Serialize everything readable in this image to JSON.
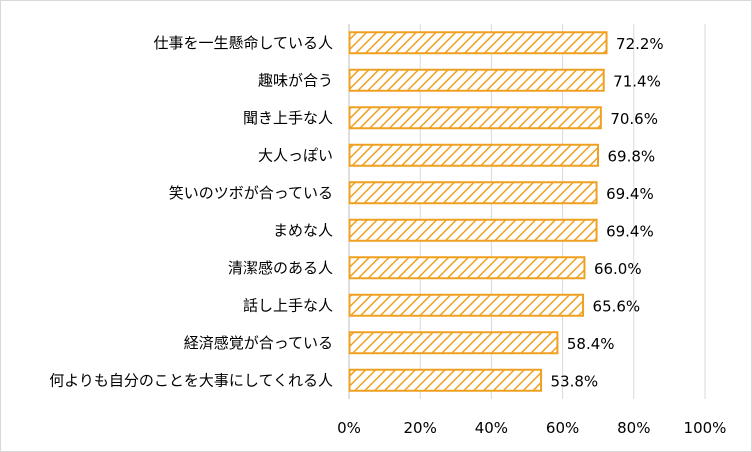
{
  "chart_data": {
    "type": "bar",
    "orientation": "horizontal",
    "categories": [
      "仕事を一生懸命している人",
      "趣味が合う",
      "聞き上手な人",
      "大人っぽい",
      "笑いのツボが合っている",
      "まめな人",
      "清潔感のある人",
      "話し上手な人",
      "経済感覚が合っている",
      "何よりも自分のことを大事にしてくれる人"
    ],
    "values": [
      72.2,
      71.4,
      70.6,
      69.8,
      69.4,
      69.4,
      66.0,
      65.6,
      58.4,
      53.8
    ],
    "value_labels": [
      "72.2%",
      "71.4%",
      "70.6%",
      "69.8%",
      "69.4%",
      "69.4%",
      "66.0%",
      "65.6%",
      "58.4%",
      "53.8%"
    ],
    "xlim": [
      0,
      100
    ],
    "x_ticks": [
      0,
      20,
      40,
      60,
      80,
      100
    ],
    "x_tick_labels": [
      "0%",
      "20%",
      "40%",
      "60%",
      "80%",
      "100%"
    ],
    "grid": true,
    "bar_color": "#f0a020",
    "bar_fill": "hatched",
    "title": "",
    "xlabel": "",
    "ylabel": ""
  }
}
